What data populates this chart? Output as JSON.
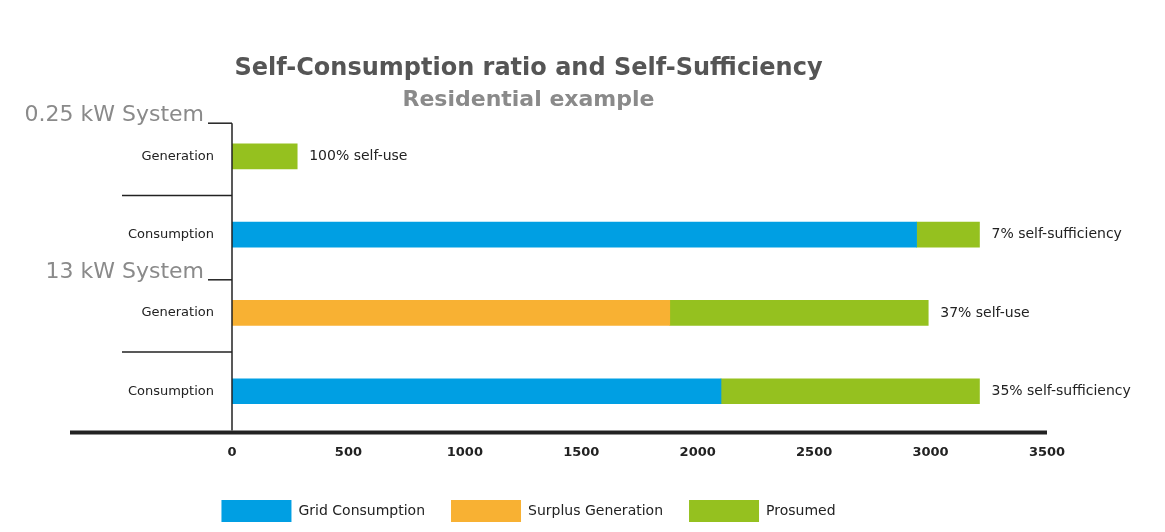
{
  "chart_data": {
    "type": "bar",
    "orientation": "horizontal",
    "stacked": true,
    "title": "Self-Consumption ratio and Self-Sufficiency",
    "subtitle": "Residential example",
    "categories": [
      "Generation",
      "Consumption",
      "Generation",
      "Consumption"
    ],
    "series": [
      {
        "name": "Grid Consumption",
        "color": "#009fe3",
        "values": [
          null,
          2940,
          null,
          2100
        ]
      },
      {
        "name": "Surplus Generation",
        "color": "#f8b133",
        "values": [
          null,
          null,
          1880,
          null
        ]
      },
      {
        "name": "Prosumed",
        "color": "#95c11f",
        "values": [
          280,
          270,
          1110,
          1110
        ]
      }
    ],
    "annotations": [
      "0.25 kW System",
      "13 kW System",
      {
        "text": "100% self-use",
        "x": 280
      },
      {
        "text": "7% self-sufficiency",
        "x": 3210
      },
      {
        "text": "37% self-use",
        "x": 2990
      },
      {
        "text": "35% self-sufficiency",
        "x": 3210
      }
    ],
    "xlim": [
      0,
      3500
    ],
    "xticks": [
      0,
      500,
      1000,
      1500,
      2000,
      2500,
      3000,
      3500
    ],
    "grid": false,
    "legend": "bottom"
  }
}
